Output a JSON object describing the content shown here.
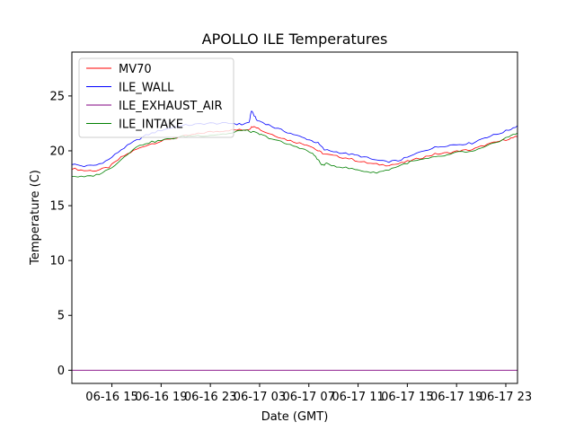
{
  "chart_data": {
    "type": "line",
    "title": "APOLLO ILE Temperatures",
    "xlabel": "Date (GMT)",
    "ylabel": "Temperature (C)",
    "x_unit": "hours since 06-16 11:45",
    "xlim": [
      0,
      36.2
    ],
    "ylim": [
      -1.2,
      29
    ],
    "yticks": [
      0,
      5,
      10,
      15,
      20,
      25
    ],
    "xticks": [
      {
        "x": 3.25,
        "label": "06-16 15"
      },
      {
        "x": 7.25,
        "label": "06-16 19"
      },
      {
        "x": 11.25,
        "label": "06-16 23"
      },
      {
        "x": 15.25,
        "label": "06-17 03"
      },
      {
        "x": 19.25,
        "label": "06-17 07"
      },
      {
        "x": 23.25,
        "label": "06-17 11"
      },
      {
        "x": 27.25,
        "label": "06-17 15"
      },
      {
        "x": 31.25,
        "label": "06-17 19"
      },
      {
        "x": 35.25,
        "label": "06-17 23"
      }
    ],
    "legend_position": "top-left",
    "series": [
      {
        "name": "MV70",
        "color": "#ff0000",
        "x": [
          0,
          1,
          2,
          3,
          4,
          5,
          6,
          7,
          8,
          9,
          10,
          11,
          12,
          13,
          13.8,
          14.4,
          14.8,
          15.5,
          16.5,
          17.5,
          18.5,
          19.3,
          20,
          20.5,
          21.5,
          22.5,
          23.5,
          24.5,
          25.5,
          26.5,
          27.5,
          28.5,
          29.5,
          30.5,
          31.5,
          32.5,
          33.5,
          34.5,
          35.5,
          36.2
        ],
        "values": [
          18.4,
          18.2,
          18.2,
          18.5,
          19.4,
          20.0,
          20.5,
          20.8,
          21.1,
          21.3,
          21.5,
          21.7,
          21.8,
          21.9,
          21.9,
          22.0,
          22.3,
          21.8,
          21.4,
          21.0,
          20.7,
          20.5,
          20.0,
          19.7,
          19.5,
          19.3,
          19.0,
          18.8,
          18.7,
          18.8,
          19.1,
          19.4,
          19.7,
          19.8,
          20.0,
          20.1,
          20.5,
          20.8,
          21.1,
          21.3
        ]
      },
      {
        "name": "ILE_WALL",
        "color": "#0000ff",
        "x": [
          0,
          1,
          2,
          3,
          4,
          5,
          6,
          7,
          8,
          9,
          10,
          11,
          12,
          13,
          13.8,
          14.4,
          14.6,
          15,
          15.5,
          16.5,
          17.5,
          18.5,
          19.3,
          20,
          20.5,
          21.5,
          22.5,
          23.5,
          24.5,
          25.5,
          26.5,
          27.5,
          28.5,
          29.5,
          30.5,
          31.5,
          32.5,
          33.5,
          34.5,
          35.5,
          36.2
        ],
        "values": [
          18.8,
          18.6,
          18.7,
          19.2,
          20.1,
          20.8,
          21.4,
          21.8,
          22.1,
          22.3,
          22.4,
          22.5,
          22.5,
          22.5,
          22.4,
          22.6,
          23.7,
          22.8,
          22.6,
          22.1,
          21.7,
          21.3,
          21.0,
          20.7,
          20.1,
          19.9,
          19.7,
          19.5,
          19.2,
          19.0,
          19.1,
          19.5,
          20.0,
          20.3,
          20.5,
          20.6,
          20.7,
          21.2,
          21.5,
          21.9,
          22.3
        ]
      },
      {
        "name": "ILE_EXHAUST_AIR",
        "color": "#800080",
        "x": [
          0,
          36.2
        ],
        "values": [
          0.0,
          0.0
        ]
      },
      {
        "name": "ILE_INTAKE",
        "color": "#008000",
        "x": [
          0,
          1,
          2,
          3,
          4,
          5,
          6,
          7,
          8,
          9,
          10,
          11,
          12,
          13,
          13.8,
          14.4,
          15,
          15.5,
          16.5,
          17.5,
          18.5,
          19.3,
          19.8,
          20.3,
          20.7,
          21.5,
          22.5,
          23.5,
          24.5,
          25.5,
          26.5,
          27.5,
          28.5,
          29.5,
          30.5,
          31.5,
          32.5,
          33.5,
          34.5,
          35.5,
          36.2
        ],
        "values": [
          17.7,
          17.6,
          17.8,
          18.3,
          19.2,
          20.2,
          20.7,
          20.9,
          21.1,
          21.3,
          21.4,
          21.4,
          21.5,
          21.6,
          21.9,
          21.8,
          21.6,
          21.4,
          21.0,
          20.6,
          20.3,
          19.9,
          19.5,
          18.7,
          18.8,
          18.6,
          18.4,
          18.2,
          18.0,
          18.2,
          18.6,
          19.0,
          19.2,
          19.4,
          19.6,
          19.9,
          19.9,
          20.3,
          20.8,
          21.3,
          21.6
        ]
      }
    ]
  }
}
